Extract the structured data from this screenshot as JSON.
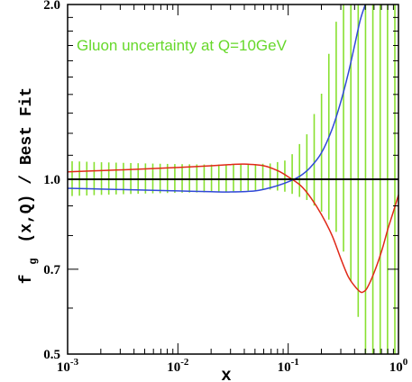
{
  "chart_data": {
    "type": "line",
    "title": "",
    "xlabel": "x",
    "ylabel": "f_g (x,Q) / Best Fit",
    "ylabel_parts": {
      "f": "f",
      "sub": "g",
      "rest": "(x,Q) / Best Fit"
    },
    "xscale": "log",
    "yscale": "log",
    "xlim": [
      0.001,
      1.0
    ],
    "ylim": [
      0.5,
      2.0
    ],
    "x_ticks": [
      {
        "base": "10",
        "exp": "-3"
      },
      {
        "base": "10",
        "exp": "-2"
      },
      {
        "base": "10",
        "exp": "-1"
      },
      {
        "base": "10",
        "exp": "0"
      }
    ],
    "y_tick_labels": [
      "0.5",
      "0.7",
      "1.0",
      "2.0"
    ],
    "y_tick_values": [
      0.5,
      0.7,
      1.0,
      2.0
    ],
    "reference_line": 1.0,
    "annotation": "Gluon uncertainty at Q=10GeV",
    "colors": {
      "band": "#88e030",
      "blue": "#3048d8",
      "red": "#e02818",
      "annotation": "#66d82a"
    },
    "band": {
      "x": [
        0.001,
        0.002,
        0.005,
        0.01,
        0.02,
        0.04,
        0.07,
        0.1,
        0.15,
        0.2,
        0.25,
        0.3,
        0.35,
        0.4,
        0.5
      ],
      "lower": [
        0.935,
        0.94,
        0.945,
        0.948,
        0.95,
        0.955,
        0.96,
        0.95,
        0.92,
        0.88,
        0.84,
        0.78,
        0.7,
        0.62,
        0.5
      ],
      "upper": [
        1.075,
        1.07,
        1.065,
        1.062,
        1.06,
        1.06,
        1.065,
        1.08,
        1.2,
        1.4,
        1.75,
        2.0,
        2.0,
        2.0,
        2.0
      ]
    },
    "series": [
      {
        "color": "blue",
        "x": [
          0.001,
          0.002,
          0.005,
          0.01,
          0.02,
          0.03,
          0.05,
          0.07,
          0.1,
          0.13,
          0.16,
          0.2,
          0.25,
          0.3,
          0.35,
          0.4,
          0.45,
          0.5
        ],
        "y": [
          0.965,
          0.962,
          0.958,
          0.955,
          0.952,
          0.951,
          0.955,
          0.968,
          0.99,
          1.015,
          1.05,
          1.11,
          1.22,
          1.36,
          1.52,
          1.7,
          1.88,
          2.0
        ]
      },
      {
        "color": "red",
        "x": [
          0.001,
          0.002,
          0.005,
          0.01,
          0.02,
          0.03,
          0.04,
          0.06,
          0.08,
          0.1,
          0.13,
          0.16,
          0.2,
          0.25,
          0.3,
          0.35,
          0.4,
          0.45,
          0.48,
          0.52,
          0.6,
          0.7,
          0.8,
          0.9,
          1.0
        ],
        "y": [
          1.03,
          1.035,
          1.042,
          1.048,
          1.055,
          1.06,
          1.062,
          1.055,
          1.035,
          1.01,
          0.975,
          0.93,
          0.87,
          0.8,
          0.73,
          0.68,
          0.655,
          0.64,
          0.64,
          0.65,
          0.69,
          0.75,
          0.82,
          0.88,
          0.94
        ]
      }
    ]
  }
}
